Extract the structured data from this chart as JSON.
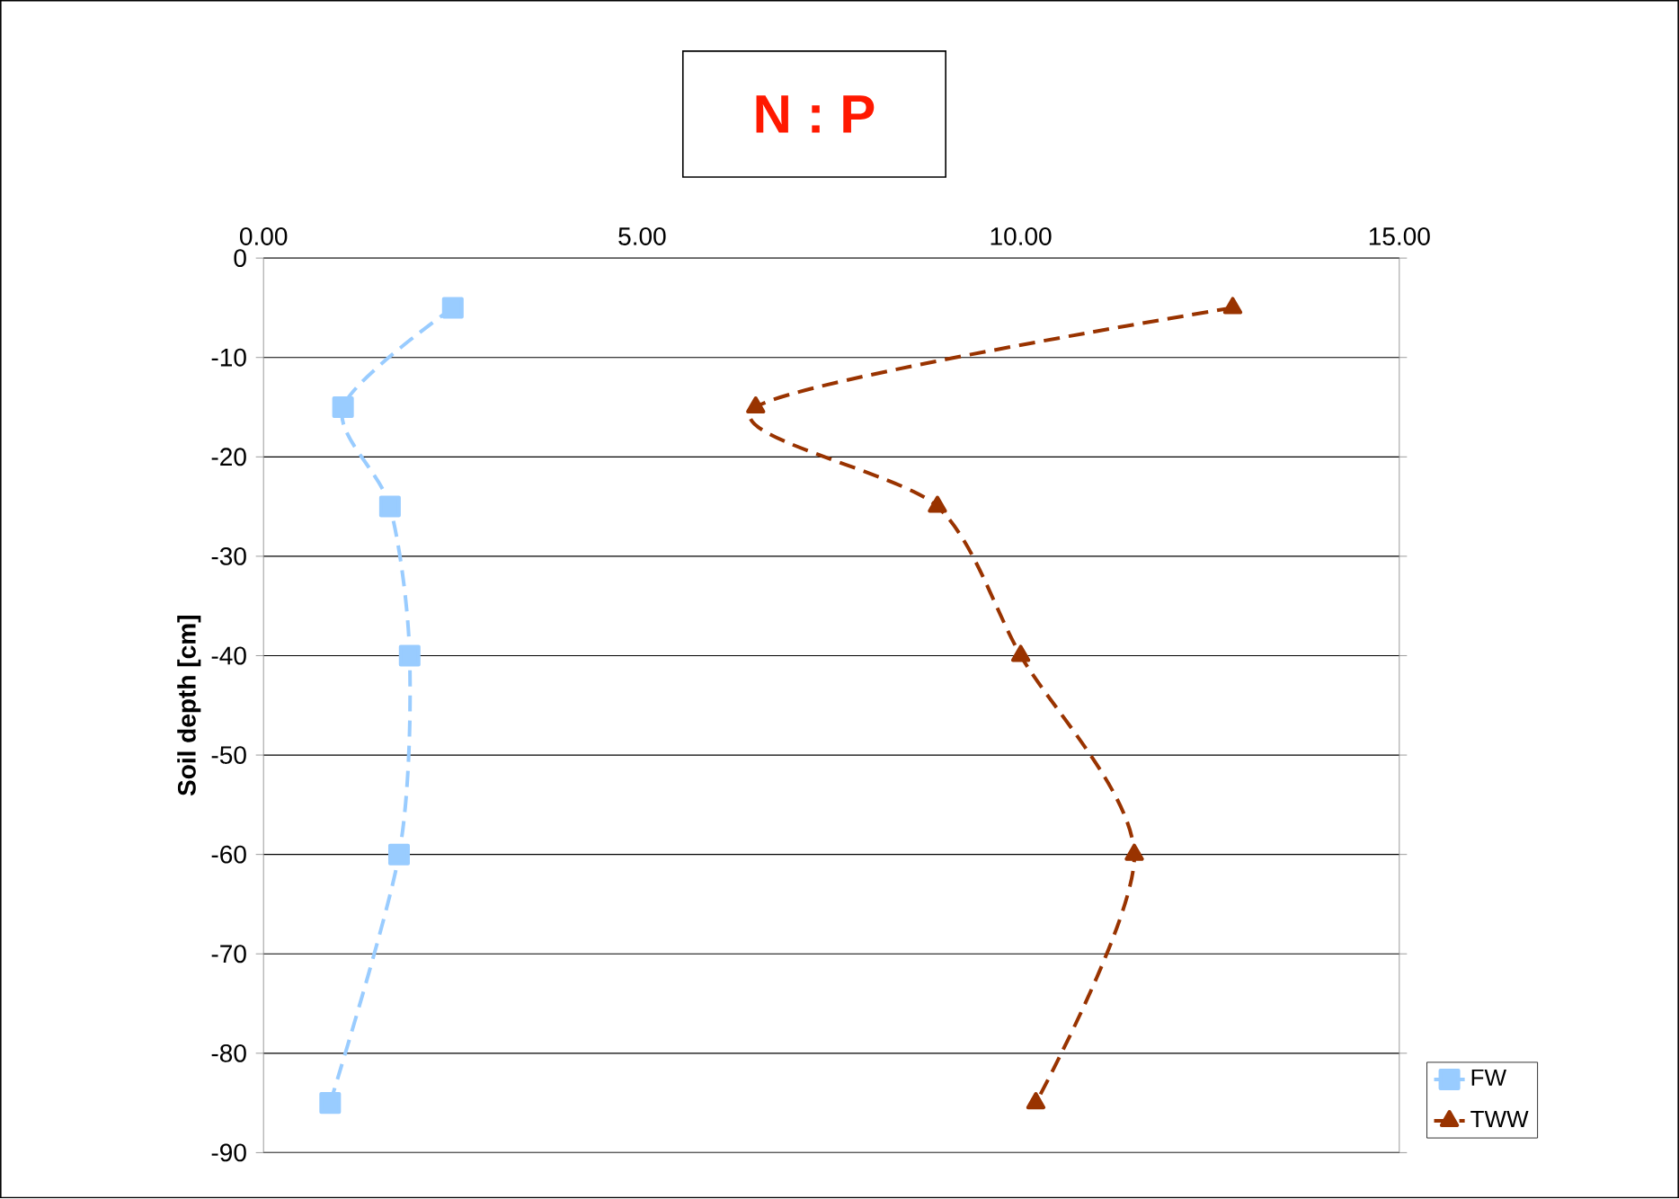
{
  "chart_data": {
    "type": "line",
    "title": "N : P",
    "ylabel": "Soil depth [cm]",
    "xlim": [
      0,
      15
    ],
    "xticks": [
      {
        "value": 0,
        "label": "0.00"
      },
      {
        "value": 5,
        "label": "5.00"
      },
      {
        "value": 10,
        "label": "10.00"
      },
      {
        "value": 15,
        "label": "15.00"
      }
    ],
    "ylim": [
      -90,
      0
    ],
    "yticks": [
      -90,
      -80,
      -70,
      -60,
      -50,
      -40,
      -30,
      -20,
      -10,
      0
    ],
    "grid": "y",
    "legend": "bottom right",
    "line_style": "dashed",
    "series": [
      {
        "name": "FW",
        "color": "#99ccff",
        "marker": "square",
        "x": [
          2.5,
          1.05,
          1.67,
          1.93,
          1.79,
          0.88
        ],
        "values": [
          -5,
          -15,
          -25,
          -40,
          -60,
          -85
        ]
      },
      {
        "name": "TWW",
        "color": "#993300",
        "marker": "triangle",
        "x": [
          12.8,
          6.5,
          8.9,
          10.0,
          11.5,
          10.2
        ],
        "values": [
          -5,
          -15,
          -25,
          -40,
          -60,
          -85
        ]
      }
    ]
  }
}
